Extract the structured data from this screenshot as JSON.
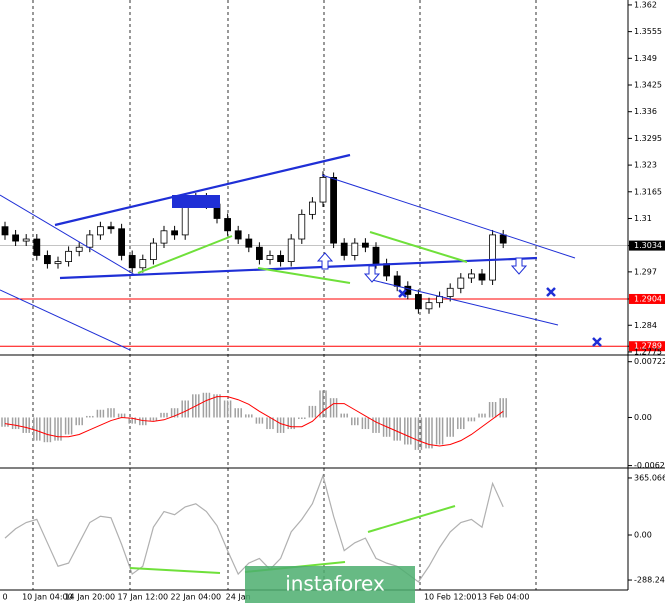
{
  "chart_data": {
    "type": "candlestick",
    "categories": [
      "0",
      null,
      null,
      null,
      "10 Jan 04:00",
      null,
      null,
      null,
      "14 Jan 20:00",
      null,
      null,
      null,
      null,
      "17 Jan 12:00",
      null,
      null,
      null,
      null,
      "22 Jan 04:00",
      null,
      null,
      null,
      "24 Jan",
      null,
      null,
      null,
      null,
      null,
      null,
      null,
      null,
      null,
      null,
      null,
      null,
      null,
      null,
      null,
      null,
      null,
      null,
      null,
      "10 Feb 12:00",
      null,
      null,
      null,
      null,
      "13 Feb 04:00"
    ],
    "open": [
      1.308,
      1.306,
      1.3045,
      1.305,
      1.301,
      1.299,
      1.2995,
      1.302,
      1.303,
      1.306,
      1.308,
      1.3075,
      1.301,
      1.298,
      1.3,
      1.304,
      1.307,
      1.306,
      1.314,
      1.315,
      1.3135,
      1.31,
      1.307,
      1.305,
      1.303,
      1.3,
      1.301,
      1.2995,
      1.305,
      1.311,
      1.314,
      1.32,
      1.304,
      1.301,
      1.304,
      1.303,
      1.299,
      1.296,
      1.2935,
      1.2915,
      1.288,
      1.2895,
      1.291,
      1.293,
      1.2955,
      1.2965,
      1.295,
      1.306
    ],
    "high": [
      1.3092,
      1.3072,
      1.3062,
      1.3062,
      1.3022,
      1.3007,
      1.3032,
      1.3042,
      1.3072,
      1.3092,
      1.3092,
      1.3087,
      1.3022,
      1.3012,
      1.3052,
      1.3082,
      1.3082,
      1.3152,
      1.3162,
      1.3162,
      1.3147,
      1.3112,
      1.3082,
      1.3062,
      1.3042,
      1.3022,
      1.3022,
      1.3062,
      1.3122,
      1.3152,
      1.3215,
      1.3212,
      1.3052,
      1.3052,
      1.3052,
      1.3042,
      1.3002,
      1.2972,
      1.2947,
      1.2927,
      1.2907,
      1.2922,
      1.2942,
      1.2967,
      1.2977,
      1.2977,
      1.3072,
      1.3072
    ],
    "low": [
      1.3048,
      1.3033,
      1.3033,
      1.2998,
      1.2978,
      1.2978,
      1.2983,
      1.3008,
      1.3018,
      1.3048,
      1.3063,
      1.2998,
      1.2968,
      1.2968,
      1.2988,
      1.3028,
      1.3048,
      1.3048,
      1.3128,
      1.3123,
      1.3088,
      1.3058,
      1.3038,
      1.3018,
      1.2988,
      1.2988,
      1.2983,
      1.2983,
      1.3038,
      1.3098,
      1.3128,
      1.3028,
      1.2998,
      1.2998,
      1.3018,
      1.2978,
      1.2948,
      1.2923,
      1.2903,
      1.2868,
      1.2868,
      1.2883,
      1.2898,
      1.2918,
      1.2943,
      1.2938,
      1.2938,
      1.3028
    ],
    "close": [
      1.306,
      1.3045,
      1.305,
      1.301,
      1.299,
      1.2995,
      1.302,
      1.303,
      1.306,
      1.308,
      1.3075,
      1.301,
      1.298,
      1.3,
      1.304,
      1.307,
      1.306,
      1.314,
      1.315,
      1.3135,
      1.31,
      1.307,
      1.305,
      1.303,
      1.3,
      1.301,
      1.2995,
      1.305,
      1.311,
      1.314,
      1.32,
      1.304,
      1.301,
      1.304,
      1.303,
      1.299,
      1.296,
      1.2935,
      1.2915,
      1.288,
      1.2895,
      1.291,
      1.293,
      1.2955,
      1.2965,
      1.295,
      1.306,
      1.304
    ],
    "ylim": [
      1.277,
      1.3632
    ],
    "yticks": [
      1.362,
      1.3555,
      1.349,
      1.3425,
      1.336,
      1.3295,
      1.323,
      1.3165,
      1.31,
      1.3034,
      1.297,
      1.2904,
      1.284,
      1.2789,
      1.2775
    ],
    "current_price": 1.3034,
    "levels": [
      1.2904,
      1.2789
    ],
    "level_color": "#ff0000",
    "macd": {
      "histogram": [
        -0.0012,
        -0.0015,
        -0.002,
        -0.003,
        -0.0032,
        -0.003,
        -0.0022,
        -0.001,
        0.0002,
        0.001,
        0.0012,
        0.0005,
        -0.0008,
        -0.001,
        -0.0004,
        0.0006,
        0.0012,
        0.0022,
        0.003,
        0.0032,
        0.003,
        0.0022,
        0.0012,
        0.0004,
        -0.0008,
        -0.0015,
        -0.002,
        -0.0015,
        -0.0002,
        0.0015,
        0.0035,
        0.0025,
        0.0005,
        -0.001,
        -0.0015,
        -0.002,
        -0.0025,
        -0.003,
        -0.0035,
        -0.0042,
        -0.004,
        -0.0035,
        -0.0025,
        -0.0015,
        -0.0005,
        0.0005,
        0.002,
        0.0025
      ],
      "signal": [
        -0.0008,
        -0.001,
        -0.0013,
        -0.0017,
        -0.0022,
        -0.0025,
        -0.0025,
        -0.0022,
        -0.0016,
        -0.001,
        -0.0004,
        0.0,
        -0.0001,
        -0.0004,
        -0.0005,
        -0.0003,
        0.0002,
        0.0008,
        0.0015,
        0.0022,
        0.0027,
        0.0027,
        0.0023,
        0.0017,
        0.0008,
        0.0,
        -0.0008,
        -0.0012,
        -0.0012,
        -0.0005,
        0.0008,
        0.0018,
        0.0018,
        0.001,
        0.0002,
        -0.0006,
        -0.0012,
        -0.0018,
        -0.0024,
        -0.003,
        -0.0035,
        -0.0037,
        -0.0035,
        -0.003,
        -0.0022,
        -0.0012,
        -0.0002,
        0.0008
      ],
      "histogram_color": "#a0a0a0",
      "signal_color": "#ff0000",
      "ylim": [
        -0.0068,
        0.0077
      ],
      "yticks": [
        0.00722,
        {
          "value": 0,
          "label": "0.00"
        },
        -0.00623
      ]
    },
    "cci": {
      "values": [
        -20,
        40,
        80,
        100,
        -50,
        -200,
        -180,
        -50,
        80,
        120,
        110,
        -60,
        -250,
        -200,
        50,
        150,
        130,
        180,
        200,
        150,
        60,
        -100,
        -250,
        -180,
        -150,
        -220,
        -150,
        20,
        100,
        200,
        380,
        120,
        -100,
        -50,
        -20,
        -150,
        -180,
        -200,
        -250,
        -300,
        -200,
        -80,
        20,
        80,
        100,
        50,
        330,
        180
      ],
      "color": "#b0b0b0",
      "ylim": [
        -352,
        416
      ],
      "yticks": [
        365.0666,
        {
          "value": 0,
          "label": "0.00"
        },
        -288.2424
      ]
    },
    "watermark": "instaforex"
  }
}
